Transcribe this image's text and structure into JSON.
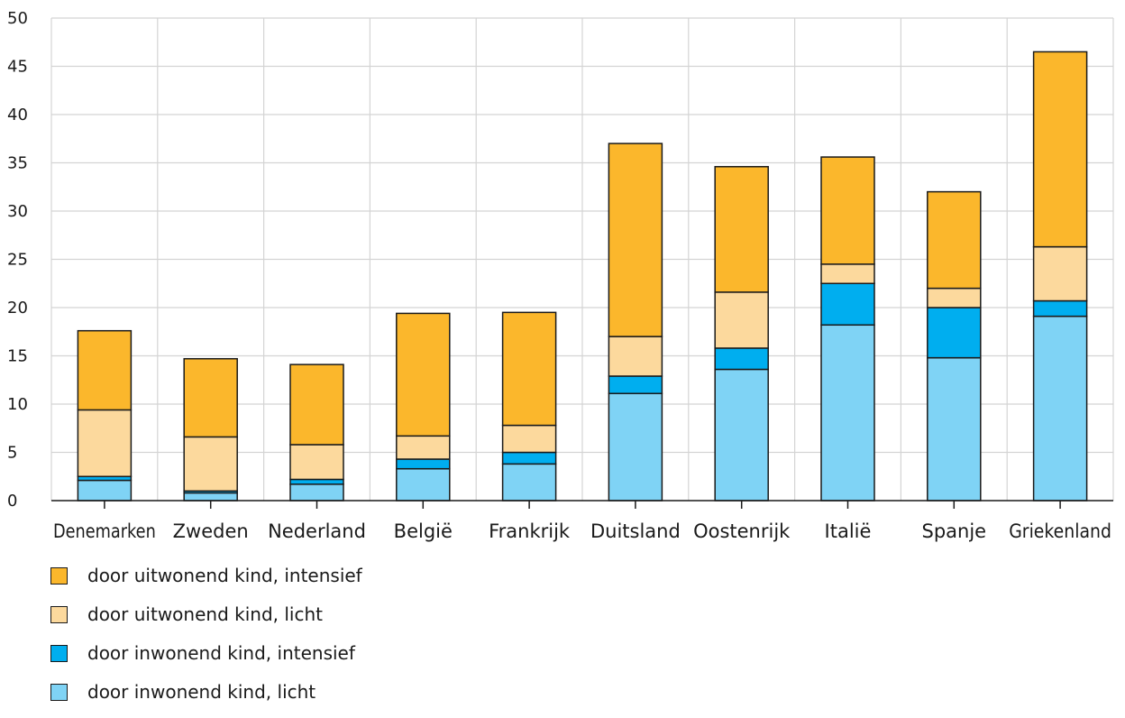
{
  "chart_data": {
    "type": "bar",
    "stacked": true,
    "title": "",
    "xlabel": "",
    "ylabel": "",
    "ylim": [
      0,
      50
    ],
    "yticks": [
      0,
      5,
      10,
      15,
      20,
      25,
      30,
      35,
      40,
      45,
      50
    ],
    "grid": true,
    "legend_position": "bottom",
    "categories": [
      "Denemarken",
      "Zweden",
      "Nederland",
      "België",
      "Frankrijk",
      "Duitsland",
      "Oostenrijk",
      "Italië",
      "Spanje",
      "Griekenland"
    ],
    "series": [
      {
        "name": "door inwonend kind, licht",
        "color": "#7fd3f5",
        "values": [
          2.1,
          0.8,
          1.7,
          3.3,
          3.8,
          11.1,
          13.6,
          18.2,
          14.8,
          19.1
        ]
      },
      {
        "name": "door inwonend kind, intensief",
        "color": "#00aeef",
        "values": [
          0.4,
          0.2,
          0.5,
          1.0,
          1.2,
          1.8,
          2.2,
          4.3,
          5.2,
          1.6
        ]
      },
      {
        "name": "door uitwonend kind, licht",
        "color": "#fcd99d",
        "values": [
          6.9,
          5.6,
          3.6,
          2.4,
          2.8,
          4.1,
          5.8,
          2.0,
          2.0,
          5.6
        ]
      },
      {
        "name": "door uitwonend kind, intensief",
        "color": "#fbb72c",
        "values": [
          8.2,
          8.1,
          8.3,
          12.7,
          11.7,
          20.0,
          13.0,
          11.1,
          10.0,
          20.2
        ]
      }
    ]
  }
}
